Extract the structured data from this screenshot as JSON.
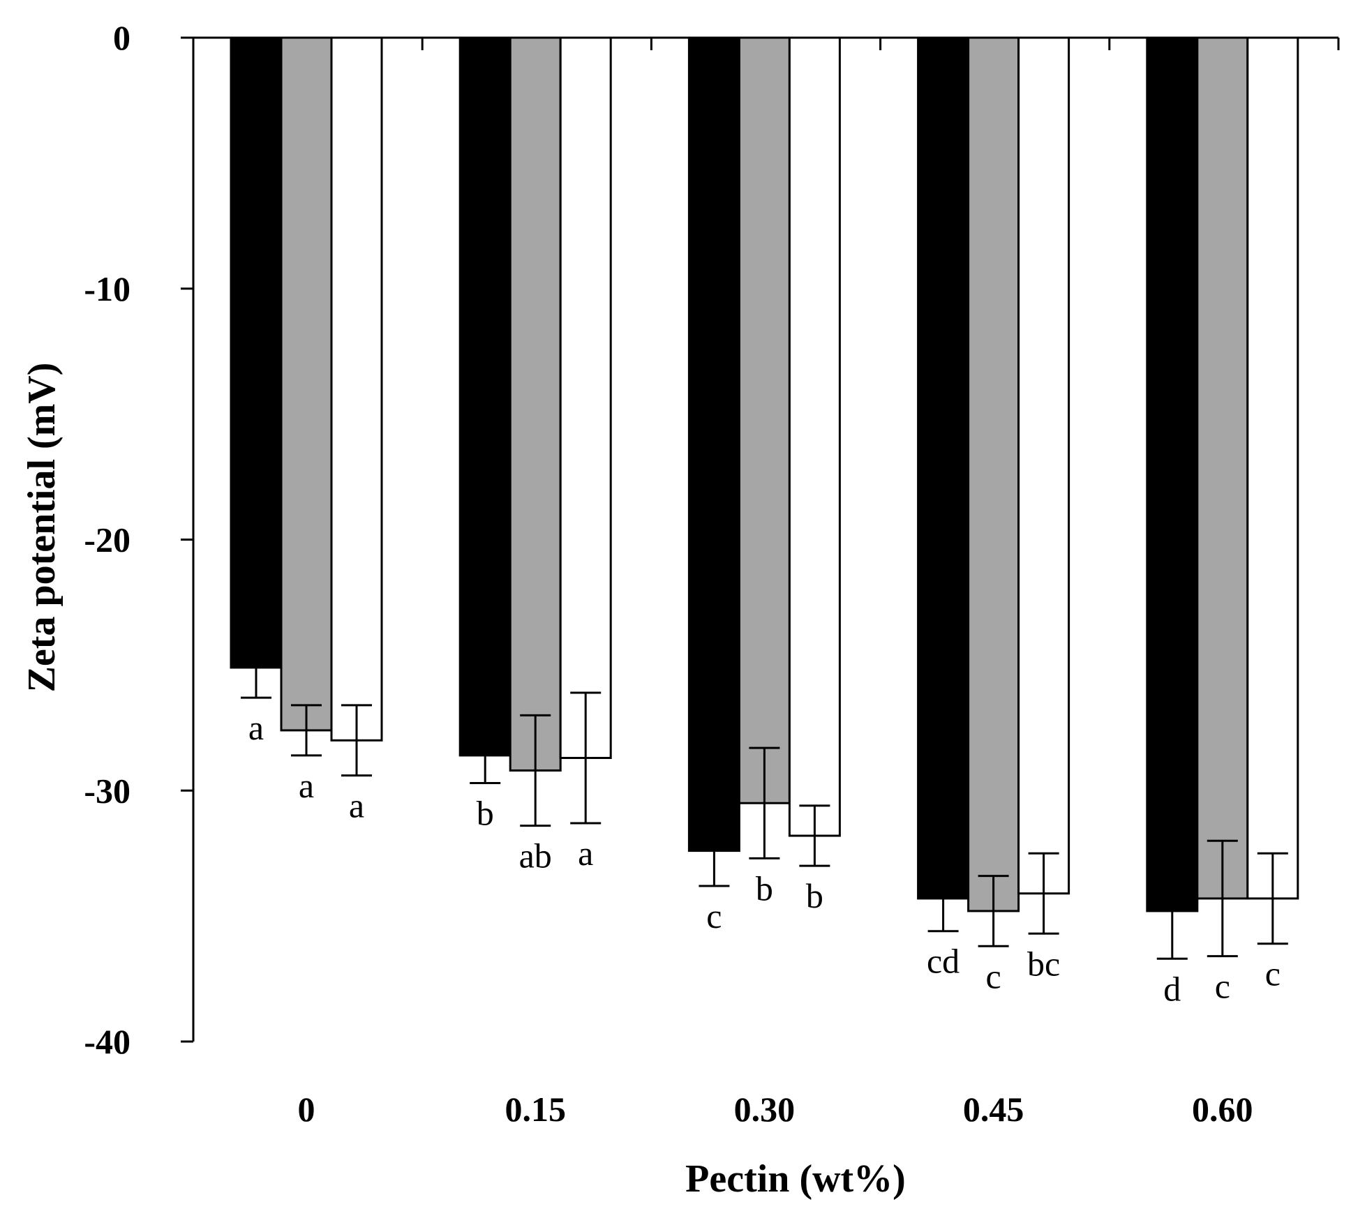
{
  "chart_data": {
    "type": "bar",
    "xlabel": "Pectin (wt%)",
    "ylabel": "Zeta potential (mV)",
    "ylim": [
      -40,
      0
    ],
    "yticks": [
      0,
      -10,
      -20,
      -30,
      -40
    ],
    "ytick_labels": [
      "0",
      "-10",
      "-20",
      "-30",
      "-40"
    ],
    "categories": [
      "0",
      "0.15",
      "0.30",
      "0.45",
      "0.60"
    ],
    "grid": false,
    "series": [
      {
        "color": "#000000",
        "values": [
          -25.1,
          -28.6,
          -32.4,
          -34.3,
          -34.8
        ],
        "errors": [
          1.2,
          1.1,
          1.4,
          1.3,
          1.9
        ],
        "letters": [
          "a",
          "b",
          "c",
          "cd",
          "d"
        ]
      },
      {
        "color": "#a6a6a6",
        "values": [
          -27.6,
          -29.2,
          -30.5,
          -34.8,
          -34.3
        ],
        "errors": [
          1.0,
          2.2,
          2.2,
          1.4,
          2.3
        ],
        "letters": [
          "a",
          "ab",
          "b",
          "c",
          "c"
        ]
      },
      {
        "color": "#ffffff",
        "values": [
          -28.0,
          -28.7,
          -31.8,
          -34.1,
          -34.3
        ],
        "errors": [
          1.4,
          2.6,
          1.2,
          1.6,
          1.8
        ],
        "letters": [
          "a",
          "a",
          "b",
          "bc",
          "c"
        ]
      }
    ]
  }
}
